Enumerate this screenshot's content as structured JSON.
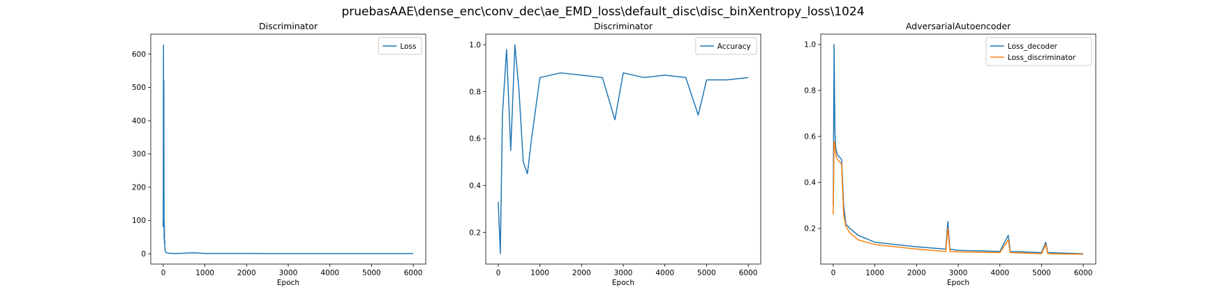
{
  "figure": {
    "suptitle": "pruebasAAE\\dense_enc\\conv_dec\\ae_EMD_loss\\default_disc\\disc_binXentropy_loss\\1024"
  },
  "colors": {
    "blue": "#1f77b4",
    "orange": "#ff7f0e"
  },
  "chart_data": [
    {
      "type": "line",
      "title": "Discriminator",
      "xlabel": "Epoch",
      "ylabel": "",
      "xlim": [
        -300,
        6300
      ],
      "ylim": [
        -31,
        660
      ],
      "xticks": [
        0,
        1000,
        2000,
        3000,
        4000,
        5000,
        6000
      ],
      "yticks": [
        0,
        100,
        200,
        300,
        400,
        500,
        600
      ],
      "legend_position": "top-right",
      "series": [
        {
          "name": "Loss",
          "color": "#1f77b4",
          "x": [
            0,
            5,
            10,
            15,
            20,
            25,
            30,
            35,
            40,
            50,
            60,
            80,
            100,
            150,
            200,
            400,
            700,
            1000,
            2000,
            3000,
            4000,
            5000,
            6000
          ],
          "y": [
            80,
            627,
            310,
            520,
            45,
            95,
            30,
            40,
            15,
            8,
            5,
            3,
            2,
            1.5,
            1,
            1,
            3,
            1,
            0.8,
            0.7,
            0.6,
            0.6,
            0.6
          ]
        }
      ]
    },
    {
      "type": "line",
      "title": "Discriminator",
      "xlabel": "Epoch",
      "ylabel": "",
      "xlim": [
        -300,
        6300
      ],
      "ylim": [
        0.065,
        1.045
      ],
      "xticks": [
        0,
        1000,
        2000,
        3000,
        4000,
        5000,
        6000
      ],
      "yticks": [
        0.2,
        0.4,
        0.6,
        0.8,
        1.0
      ],
      "legend_position": "top-right",
      "series": [
        {
          "name": "Accuracy",
          "color": "#1f77b4",
          "x": [
            0,
            50,
            100,
            200,
            300,
            400,
            500,
            600,
            700,
            800,
            1000,
            1500,
            2000,
            2500,
            2800,
            3000,
            3500,
            4000,
            4500,
            4800,
            5000,
            5500,
            6000
          ],
          "y": [
            0.33,
            0.11,
            0.7,
            0.98,
            0.55,
            1.0,
            0.8,
            0.5,
            0.45,
            0.6,
            0.86,
            0.88,
            0.87,
            0.86,
            0.68,
            0.88,
            0.86,
            0.87,
            0.86,
            0.7,
            0.85,
            0.85,
            0.86
          ]
        }
      ]
    },
    {
      "type": "line",
      "title": "AdversarialAutoencoder",
      "xlabel": "Epoch",
      "ylabel": "",
      "xlim": [
        -300,
        6300
      ],
      "ylim": [
        0.045,
        1.045
      ],
      "xticks": [
        0,
        1000,
        2000,
        3000,
        4000,
        5000,
        6000
      ],
      "yticks": [
        0.2,
        0.4,
        0.6,
        0.8,
        1.0
      ],
      "legend_position": "top-right",
      "series": [
        {
          "name": "Loss_decoder",
          "color": "#1f77b4",
          "x": [
            0,
            20,
            40,
            60,
            100,
            200,
            250,
            300,
            400,
            600,
            1000,
            2000,
            2700,
            2750,
            2800,
            3000,
            4000,
            4200,
            4250,
            5000,
            5100,
            5150,
            6000
          ],
          "y": [
            0.3,
            1.0,
            0.62,
            0.55,
            0.52,
            0.5,
            0.3,
            0.22,
            0.2,
            0.17,
            0.14,
            0.12,
            0.11,
            0.23,
            0.11,
            0.105,
            0.1,
            0.17,
            0.1,
            0.095,
            0.14,
            0.095,
            0.09
          ]
        },
        {
          "name": "Loss_discriminator",
          "color": "#ff7f0e",
          "x": [
            0,
            20,
            40,
            60,
            100,
            200,
            250,
            300,
            400,
            600,
            1000,
            2000,
            2700,
            2750,
            2800,
            3000,
            4000,
            4200,
            4250,
            5000,
            5100,
            5150,
            6000
          ],
          "y": [
            0.26,
            0.58,
            0.56,
            0.52,
            0.5,
            0.48,
            0.26,
            0.21,
            0.18,
            0.15,
            0.13,
            0.11,
            0.1,
            0.2,
            0.1,
            0.098,
            0.095,
            0.15,
            0.095,
            0.09,
            0.13,
            0.09,
            0.088
          ]
        }
      ]
    }
  ]
}
